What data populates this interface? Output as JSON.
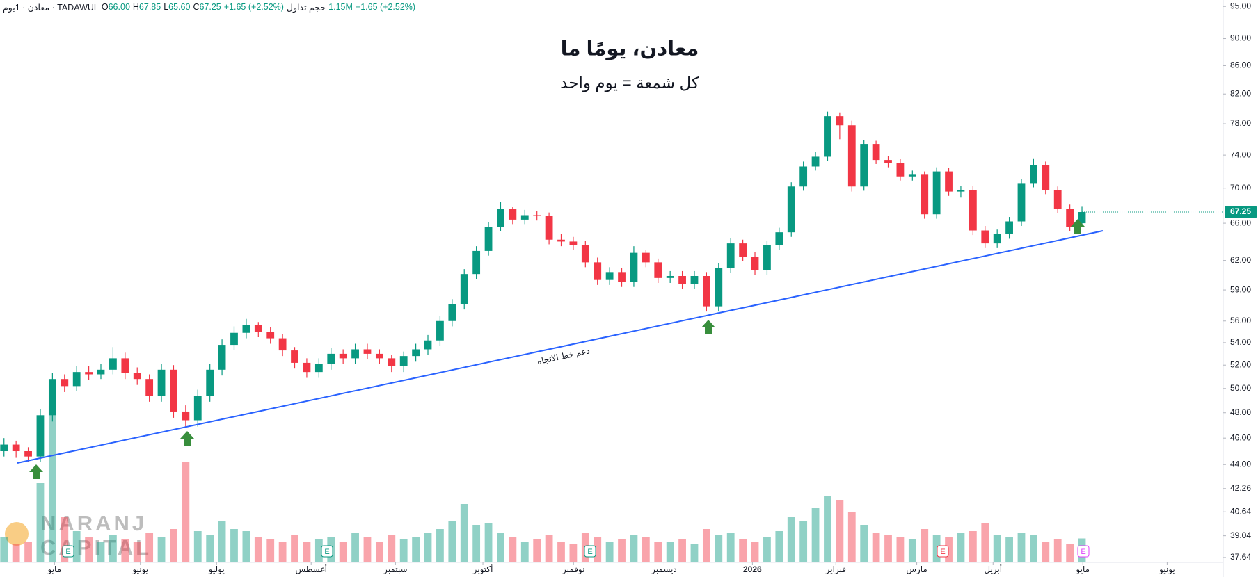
{
  "chart_data": {
    "type": "candlestick",
    "title": "معادن، يومًا ما",
    "subtitle": "كل شمعة = يوم واحد",
    "header": [
      "معادن · 1يوم · TADAWUL",
      "O",
      "66.00",
      "H",
      "67.85",
      "L",
      "65.60",
      "C",
      "67.25",
      "+1.65 (+2.52%)",
      "حجم تداول",
      "1.15M",
      "+1.65 (+2.52%)"
    ],
    "trendline_label": "دعم خط الاتجاه",
    "watermark": [
      "NARANJ",
      "CAPITAL"
    ],
    "earnings_marker": "E",
    "up_color": "#089981",
    "down_color": "#f23645",
    "trendline_color": "#2962ff",
    "arrow_color": "#388e3c",
    "log_scale": true,
    "categories": [
      null,
      null,
      null,
      null,
      null,
      null,
      null,
      null,
      null,
      null,
      null,
      null,
      null,
      null,
      null,
      null,
      null,
      null,
      null,
      null,
      null,
      null,
      null,
      null,
      null,
      null,
      null,
      null,
      null,
      null,
      null,
      null,
      null,
      null,
      null,
      null,
      null,
      null,
      null,
      null,
      null,
      null,
      null,
      null,
      null,
      null,
      null,
      null,
      null,
      null,
      null,
      null,
      null,
      null,
      null,
      null,
      null,
      null,
      null,
      null,
      null,
      null,
      null,
      null,
      null,
      null,
      null,
      null,
      null,
      null,
      null,
      null,
      null,
      null,
      null,
      null,
      null,
      null,
      null,
      null,
      null,
      null,
      null,
      null,
      null,
      null,
      null,
      null,
      null,
      null
    ],
    "open": [
      45.0,
      45.5,
      45.0,
      44.6,
      47.8,
      50.8,
      50.2,
      51.4,
      51.2,
      51.6,
      52.6,
      51.3,
      50.8,
      49.4,
      51.6,
      48.1,
      47.4,
      49.4,
      51.6,
      53.8,
      54.9,
      55.6,
      55.0,
      54.4,
      53.3,
      52.2,
      51.4,
      52.1,
      53.0,
      52.6,
      53.4,
      53.0,
      52.6,
      51.9,
      52.8,
      53.4,
      54.2,
      56.0,
      57.6,
      60.6,
      63.0,
      65.6,
      67.6,
      66.4,
      66.9,
      66.8,
      64.2,
      64.0,
      63.6,
      61.8,
      60.0,
      60.8,
      59.8,
      62.8,
      61.8,
      60.2,
      60.4,
      59.6,
      60.4,
      57.4,
      61.2,
      63.8,
      62.4,
      61.0,
      63.6,
      65.0,
      70.2,
      72.6,
      73.8,
      79.0,
      77.8,
      70.2,
      75.4,
      73.4,
      73.0,
      71.4,
      71.6,
      67.0,
      72.0,
      69.6,
      69.8,
      65.2,
      63.8,
      64.8,
      66.2,
      70.6,
      72.8,
      69.8,
      67.6,
      66.0
    ],
    "high": [
      46.0,
      45.8,
      45.3,
      48.3,
      51.3,
      51.2,
      51.9,
      51.9,
      52.1,
      53.6,
      53.1,
      51.8,
      51.2,
      52.1,
      52.0,
      48.6,
      49.9,
      52.1,
      54.3,
      55.5,
      56.2,
      55.9,
      55.4,
      54.8,
      53.6,
      52.6,
      52.6,
      53.5,
      53.4,
      53.9,
      53.9,
      53.4,
      52.9,
      53.2,
      53.9,
      54.7,
      56.5,
      58.1,
      61.1,
      63.5,
      66.1,
      68.4,
      67.8,
      67.5,
      67.4,
      67.2,
      64.8,
      64.5,
      64.1,
      62.3,
      61.3,
      61.2,
      63.5,
      63.1,
      62.2,
      60.9,
      60.9,
      60.9,
      60.8,
      61.7,
      64.4,
      64.2,
      62.9,
      64.1,
      65.5,
      70.7,
      73.2,
      74.4,
      79.6,
      79.5,
      78.4,
      75.9,
      75.8,
      73.9,
      73.5,
      72.1,
      72.0,
      72.5,
      72.4,
      70.3,
      70.3,
      65.7,
      65.3,
      66.7,
      71.1,
      73.6,
      73.2,
      70.2,
      68.1,
      67.85
    ],
    "low": [
      44.6,
      44.5,
      44.2,
      44.2,
      47.3,
      49.7,
      49.8,
      50.7,
      50.8,
      51.2,
      50.8,
      50.3,
      48.9,
      48.9,
      47.6,
      46.8,
      46.9,
      48.9,
      51.1,
      53.3,
      54.4,
      54.5,
      53.9,
      52.8,
      51.7,
      50.9,
      50.9,
      51.6,
      52.1,
      52.1,
      52.5,
      52.1,
      51.4,
      51.4,
      52.3,
      52.9,
      53.7,
      55.5,
      57.1,
      60.1,
      62.5,
      65.1,
      65.9,
      65.9,
      66.3,
      63.7,
      63.5,
      63.1,
      61.3,
      59.5,
      59.5,
      59.3,
      59.3,
      61.3,
      59.7,
      59.7,
      59.1,
      59.1,
      56.9,
      56.9,
      60.7,
      61.9,
      60.5,
      60.5,
      63.1,
      64.5,
      69.7,
      72.1,
      73.3,
      76.0,
      69.6,
      69.7,
      72.9,
      72.5,
      70.9,
      70.9,
      66.5,
      66.5,
      69.1,
      68.9,
      64.7,
      63.3,
      63.3,
      64.3,
      65.7,
      70.1,
      69.3,
      67.1,
      65.1,
      65.6
    ],
    "close": [
      45.5,
      45.0,
      44.6,
      47.8,
      50.8,
      50.2,
      51.4,
      51.2,
      51.6,
      52.6,
      51.3,
      50.8,
      49.4,
      51.6,
      48.1,
      47.4,
      49.4,
      51.6,
      53.8,
      54.9,
      55.6,
      55.0,
      54.4,
      53.3,
      52.2,
      51.4,
      52.1,
      53.0,
      52.6,
      53.4,
      53.0,
      52.6,
      51.9,
      52.8,
      53.4,
      54.2,
      56.0,
      57.6,
      60.6,
      63.0,
      65.6,
      67.6,
      66.4,
      66.9,
      66.8,
      64.2,
      64.0,
      63.6,
      61.8,
      60.0,
      60.8,
      59.8,
      62.8,
      61.8,
      60.2,
      60.4,
      59.6,
      60.4,
      57.4,
      61.2,
      63.8,
      62.4,
      61.0,
      63.6,
      65.0,
      70.2,
      72.6,
      73.8,
      79.0,
      77.8,
      70.2,
      75.4,
      73.4,
      73.0,
      71.4,
      71.6,
      67.0,
      72.0,
      69.6,
      69.8,
      65.2,
      63.8,
      64.8,
      66.2,
      70.6,
      72.8,
      69.8,
      67.6,
      65.6,
      67.25
    ],
    "volume": [
      1.2,
      0.9,
      1.0,
      3.8,
      7.5,
      2.2,
      1.5,
      1.2,
      1.0,
      1.3,
      1.1,
      1.0,
      1.4,
      1.2,
      1.6,
      4.8,
      1.5,
      1.3,
      2.0,
      1.6,
      1.5,
      1.2,
      1.1,
      1.0,
      1.3,
      1.0,
      1.1,
      1.2,
      1.0,
      1.4,
      1.2,
      1.0,
      1.3,
      1.1,
      1.2,
      1.4,
      1.6,
      2.0,
      2.8,
      1.8,
      1.9,
      1.4,
      1.2,
      1.0,
      1.1,
      1.3,
      1.0,
      0.9,
      1.4,
      1.2,
      1.0,
      1.1,
      1.3,
      1.2,
      1.0,
      1.0,
      1.1,
      0.9,
      1.6,
      1.3,
      1.4,
      1.1,
      1.0,
      1.2,
      1.5,
      2.2,
      2.0,
      2.6,
      3.2,
      3.0,
      2.4,
      1.8,
      1.4,
      1.3,
      1.2,
      1.1,
      1.6,
      1.3,
      1.2,
      1.4,
      1.5,
      1.9,
      1.3,
      1.2,
      1.4,
      1.3,
      1.0,
      1.1,
      0.9,
      1.15
    ],
    "xlim": [
      -0.33,
      100.66
    ],
    "xticks": [
      {
        "value": 4.17,
        "label": "مايو"
      },
      {
        "value": 11.26,
        "label": "يونيو"
      },
      {
        "value": 17.55,
        "label": "يوليو"
      },
      {
        "value": 25.36,
        "label": "أغسطس"
      },
      {
        "value": 32.32,
        "label": "سبتمبر"
      },
      {
        "value": 39.54,
        "label": "أكتوبر"
      },
      {
        "value": 47.02,
        "label": "نوفمبر"
      },
      {
        "value": 54.5,
        "label": "ديسمبر"
      },
      {
        "value": 61.79,
        "label": "2026"
      },
      {
        "value": 68.68,
        "label": "فبراير"
      },
      {
        "value": 75.36,
        "label": "مارس"
      },
      {
        "value": 81.66,
        "label": "أبريل"
      },
      {
        "value": 89.07,
        "label": "مايو"
      },
      {
        "value": 96.03,
        "label": "يونيو"
      }
    ],
    "ylim": [
      37.33,
      96.03
    ],
    "yticks": [
      {
        "value": 95,
        "label": "95.00"
      },
      {
        "value": 90,
        "label": "90.00"
      },
      {
        "value": 86,
        "label": "86.00"
      },
      {
        "value": 82,
        "label": "82.00"
      },
      {
        "value": 78,
        "label": "78.00"
      },
      {
        "value": 74,
        "label": "74.00"
      },
      {
        "value": 70,
        "label": "70.00"
      },
      {
        "value": 66,
        "label": "66.00"
      },
      {
        "value": 62,
        "label": "62.00"
      },
      {
        "value": 59,
        "label": "59.00"
      },
      {
        "value": 56,
        "label": "56.00"
      },
      {
        "value": 54,
        "label": "54.00"
      },
      {
        "value": 52,
        "label": "52.00"
      },
      {
        "value": 50,
        "label": "50.00"
      },
      {
        "value": 48,
        "label": "48.00"
      },
      {
        "value": 46,
        "label": "46.00"
      },
      {
        "value": 44,
        "label": "44.00"
      },
      42.26,
      40.64,
      39.04,
      37.64
    ]
  }
}
